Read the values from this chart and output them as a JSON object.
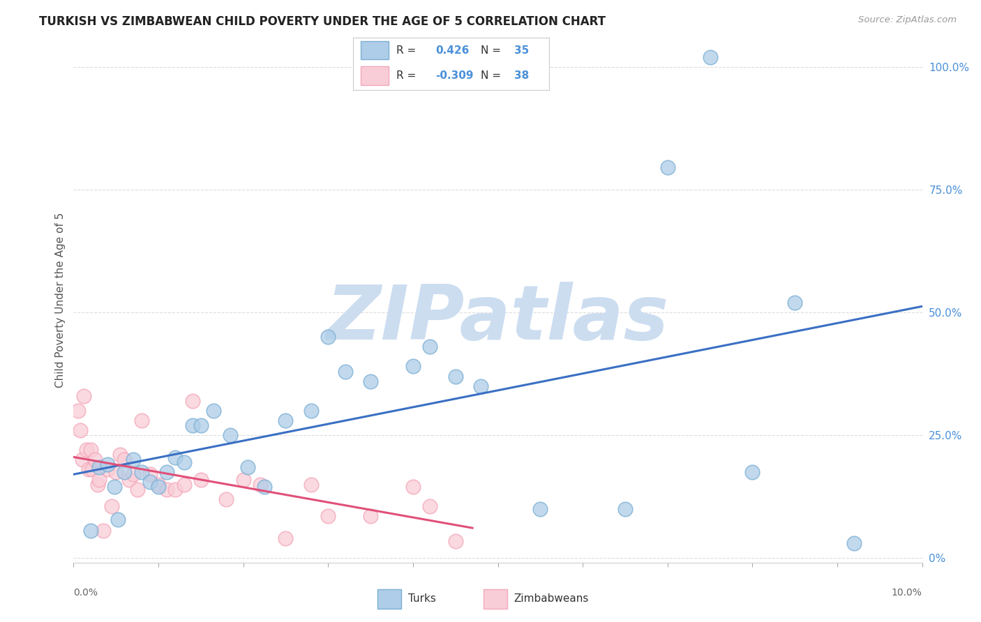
{
  "title": "TURKISH VS ZIMBABWEAN CHILD POVERTY UNDER THE AGE OF 5 CORRELATION CHART",
  "source": "Source: ZipAtlas.com",
  "ylabel": "Child Poverty Under the Age of 5",
  "xlim": [
    0.0,
    10.0
  ],
  "ylim": [
    -0.01,
    1.06
  ],
  "ytick_values": [
    0.0,
    0.25,
    0.5,
    0.75,
    1.0
  ],
  "ytick_labels": [
    "0%",
    "25.0%",
    "50.0%",
    "75.0%",
    "100.0%"
  ],
  "turks_color_edge": "#7bafd4",
  "turks_color_fill": "#aecde8",
  "zimb_color_edge": "#f4a7b9",
  "zimb_color_fill": "#f9cdd7",
  "trendline_turks_color": "#3a6fc4",
  "trendline_zimb_color": "#e05078",
  "R_turks": 0.426,
  "N_turks": 35,
  "R_zimb": -0.309,
  "N_zimb": 38,
  "legend_label_turks": "Turks",
  "legend_label_zimb": "Zimbabweans",
  "turks_x": [
    0.2,
    0.3,
    0.4,
    0.48,
    0.52,
    0.6,
    0.7,
    0.8,
    0.9,
    1.0,
    1.1,
    1.2,
    1.3,
    1.4,
    1.5,
    1.65,
    1.85,
    2.05,
    2.25,
    2.5,
    2.8,
    3.0,
    3.2,
    3.5,
    4.0,
    4.2,
    4.5,
    4.8,
    5.5,
    6.5,
    7.0,
    7.5,
    8.0,
    8.5,
    9.2
  ],
  "turks_y": [
    0.055,
    0.185,
    0.19,
    0.145,
    0.078,
    0.175,
    0.2,
    0.175,
    0.155,
    0.145,
    0.175,
    0.205,
    0.195,
    0.27,
    0.27,
    0.3,
    0.25,
    0.185,
    0.145,
    0.28,
    0.3,
    0.45,
    0.38,
    0.36,
    0.39,
    0.43,
    0.37,
    0.35,
    0.1,
    0.1,
    0.795,
    1.02,
    0.175,
    0.52,
    0.03
  ],
  "zimb_x": [
    0.05,
    0.08,
    0.1,
    0.12,
    0.15,
    0.18,
    0.2,
    0.22,
    0.25,
    0.28,
    0.3,
    0.35,
    0.4,
    0.45,
    0.5,
    0.55,
    0.6,
    0.65,
    0.7,
    0.75,
    0.8,
    0.9,
    1.0,
    1.1,
    1.2,
    1.3,
    1.4,
    1.5,
    1.8,
    2.0,
    2.2,
    2.5,
    2.8,
    3.0,
    3.5,
    4.0,
    4.2,
    4.5
  ],
  "zimb_y": [
    0.3,
    0.26,
    0.2,
    0.33,
    0.22,
    0.18,
    0.22,
    0.18,
    0.2,
    0.15,
    0.16,
    0.055,
    0.18,
    0.105,
    0.175,
    0.21,
    0.2,
    0.16,
    0.17,
    0.14,
    0.28,
    0.17,
    0.15,
    0.14,
    0.14,
    0.15,
    0.32,
    0.16,
    0.12,
    0.16,
    0.15,
    0.04,
    0.15,
    0.085,
    0.085,
    0.145,
    0.105,
    0.035
  ],
  "watermark_text": "ZIPatlas",
  "watermark_color": "#ccddf0",
  "background_color": "#ffffff",
  "grid_color": "#dddddd",
  "right_tick_color": "#4a90d9",
  "dot_size": 18,
  "dot_alpha": 0.75
}
